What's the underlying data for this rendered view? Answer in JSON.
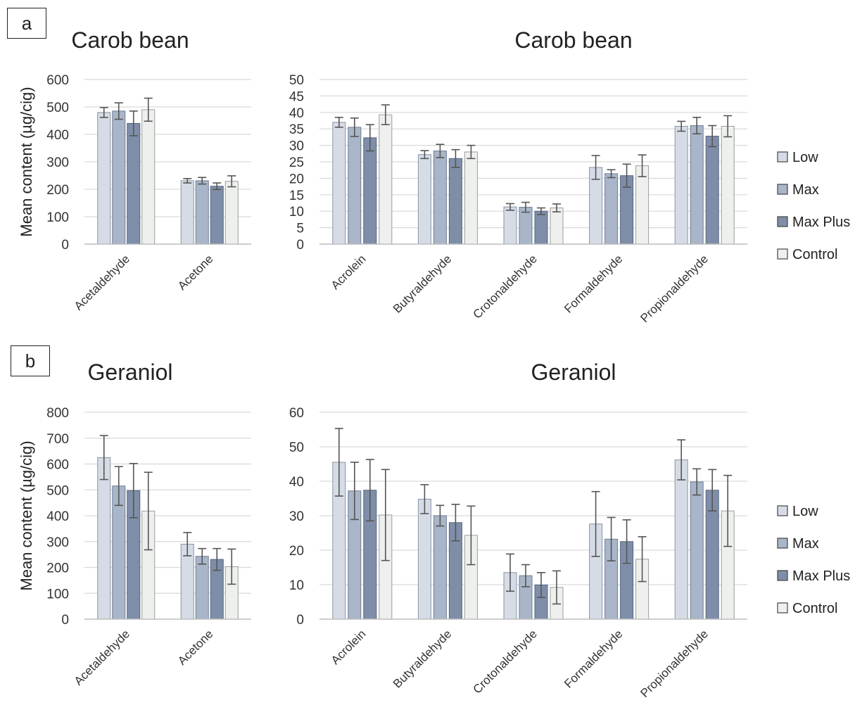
{
  "panels": [
    {
      "letter": "a",
      "title": "Carob bean"
    },
    {
      "letter": "b",
      "title": "Geraniol"
    }
  ],
  "legend": {
    "entries": [
      "Low",
      "Max",
      "Max Plus",
      "Control"
    ],
    "colors": [
      "#d6dce6",
      "#a9b5c9",
      "#7f8ea8",
      "#eef0ee"
    ]
  },
  "chart_data": [
    {
      "type": "bar",
      "panel": "a",
      "title": "Carob bean",
      "ylabel": "Mean content (µg/cig)",
      "ylim": [
        0,
        600
      ],
      "yticks": [
        0,
        100,
        200,
        300,
        400,
        500,
        600
      ],
      "categories": [
        "Acetaldehyde",
        "Acetone"
      ],
      "series": [
        {
          "name": "Low",
          "values": [
            480,
            231
          ],
          "errors": [
            18,
            8
          ]
        },
        {
          "name": "Max",
          "values": [
            485,
            231
          ],
          "errors": [
            30,
            12
          ]
        },
        {
          "name": "Max Plus",
          "values": [
            440,
            211
          ],
          "errors": [
            45,
            12
          ]
        },
        {
          "name": "Control",
          "values": [
            490,
            229
          ],
          "errors": [
            42,
            20
          ]
        }
      ]
    },
    {
      "type": "bar",
      "panel": "a",
      "title": "Carob bean",
      "ylabel": "",
      "ylim": [
        0,
        50
      ],
      "yticks": [
        0,
        5,
        10,
        15,
        20,
        25,
        30,
        35,
        40,
        45,
        50
      ],
      "categories": [
        "Acrolein",
        "Butyraldehyde",
        "Crotonaldehyde",
        "Formaldehyde",
        "Propionaldehyde"
      ],
      "series": [
        {
          "name": "Low",
          "values": [
            37,
            27.2,
            11.3,
            23.3,
            35.8
          ],
          "errors": [
            1.5,
            1.2,
            1.0,
            3.6,
            1.5
          ]
        },
        {
          "name": "Max",
          "values": [
            35.5,
            28.3,
            11.2,
            21.4,
            36.0
          ],
          "errors": [
            2.8,
            2.0,
            1.5,
            1.2,
            2.5
          ]
        },
        {
          "name": "Max Plus",
          "values": [
            32.3,
            26.0,
            10.0,
            20.8,
            32.8
          ],
          "errors": [
            4.0,
            2.7,
            1.0,
            3.5,
            3.2
          ]
        },
        {
          "name": "Control",
          "values": [
            39.3,
            28.0,
            11.0,
            23.8,
            35.8
          ],
          "errors": [
            3.0,
            2.0,
            1.2,
            3.3,
            3.2
          ]
        }
      ]
    },
    {
      "type": "bar",
      "panel": "b",
      "title": "Geraniol",
      "ylabel": "Mean content (µg/cig)",
      "ylim": [
        0,
        800
      ],
      "yticks": [
        0,
        100,
        200,
        300,
        400,
        500,
        600,
        700,
        800
      ],
      "categories": [
        "Acetaldehyde",
        "Acetone"
      ],
      "series": [
        {
          "name": "Low",
          "values": [
            625,
            290
          ],
          "errors": [
            85,
            45
          ]
        },
        {
          "name": "Max",
          "values": [
            515,
            243
          ],
          "errors": [
            75,
            30
          ]
        },
        {
          "name": "Max Plus",
          "values": [
            497,
            231
          ],
          "errors": [
            105,
            42
          ]
        },
        {
          "name": "Control",
          "values": [
            418,
            203
          ],
          "errors": [
            150,
            68
          ]
        }
      ]
    },
    {
      "type": "bar",
      "panel": "b",
      "title": "Geraniol",
      "ylabel": "",
      "ylim": [
        0,
        60
      ],
      "yticks": [
        0,
        10,
        20,
        30,
        40,
        50,
        60
      ],
      "categories": [
        "Acrolein",
        "Butyraldehyde",
        "Crotonaldehyde",
        "Formaldehyde",
        "Propionaldehyde"
      ],
      "series": [
        {
          "name": "Low",
          "values": [
            45.5,
            34.8,
            13.5,
            27.6,
            46.2
          ],
          "errors": [
            9.8,
            4.2,
            5.4,
            9.4,
            5.8
          ]
        },
        {
          "name": "Max",
          "values": [
            37.2,
            30.0,
            12.6,
            23.2,
            39.8
          ],
          "errors": [
            8.3,
            3.0,
            3.2,
            6.3,
            3.8
          ]
        },
        {
          "name": "Max Plus",
          "values": [
            37.4,
            28.0,
            9.9,
            22.5,
            37.4
          ],
          "errors": [
            8.9,
            5.3,
            3.6,
            6.3,
            6.0
          ]
        },
        {
          "name": "Control",
          "values": [
            30.2,
            24.3,
            9.2,
            17.4,
            31.4
          ],
          "errors": [
            13.2,
            8.5,
            4.8,
            6.5,
            10.3
          ]
        }
      ]
    }
  ]
}
